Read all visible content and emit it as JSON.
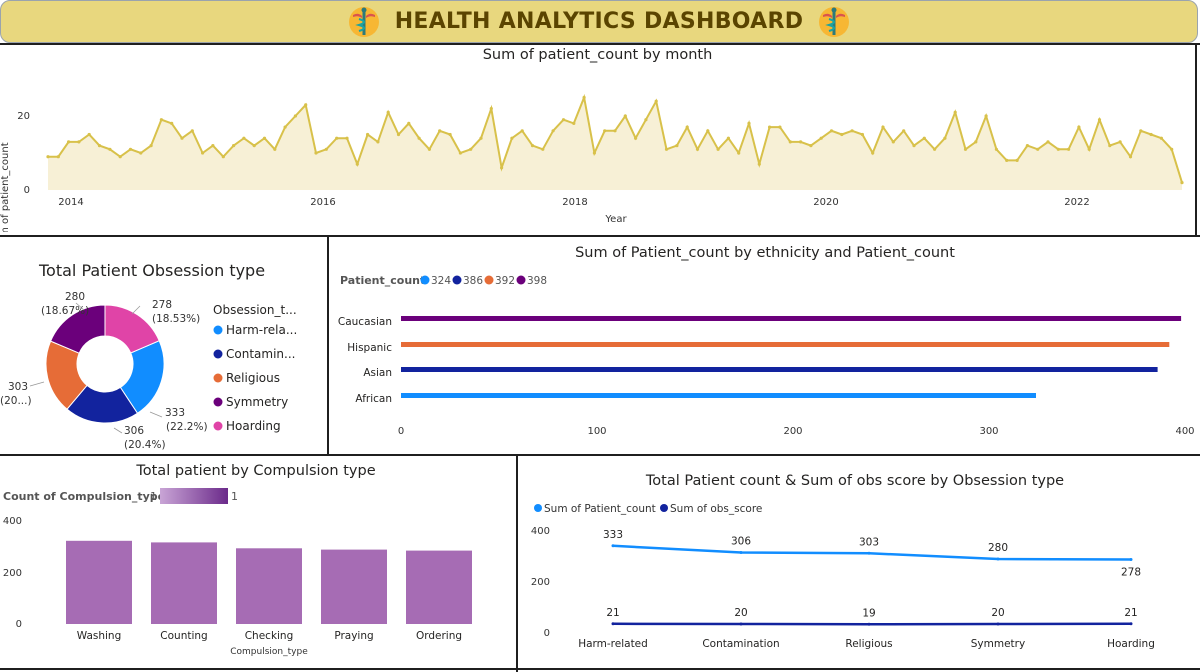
{
  "header": {
    "title": "HEALTH ANALYTICS DASHBOARD",
    "icon": "caduceus-icon"
  },
  "colors": {
    "line": "#d8c14a",
    "area": "#f7f0d6",
    "blue": "#118dff",
    "navy": "#12239e",
    "orange": "#e66c37",
    "purple": "#6b007b",
    "pink": "#e044a7",
    "bar": "#a66cb4"
  },
  "monthly": {
    "title": "Sum of patient_count by month",
    "xlabel": "Year",
    "ylabel": "Sum of patient_count",
    "y_ticks": [
      "0",
      "20"
    ],
    "x_ticks": [
      "2014",
      "2016",
      "2018",
      "2020",
      "2022"
    ]
  },
  "donut": {
    "title": "Total Patient Obsession type",
    "legend_title": "Obsession_t...",
    "legend_items": [
      "Harm-rela...",
      "Contamin...",
      "Religious",
      "Symmetry",
      "Hoarding"
    ],
    "labels": [
      {
        "value": "333",
        "pct": "(22.2%)"
      },
      {
        "value": "306",
        "pct": "(20.4%)"
      },
      {
        "value": "303",
        "pct": "(20...)"
      },
      {
        "value": "280",
        "pct": "(18.67%)"
      },
      {
        "value": "278",
        "pct": "(18.53%)"
      }
    ]
  },
  "ethnicity": {
    "title": "Sum of Patient_count by ethnicity and Patient_count",
    "legend_title": "Patient_count",
    "legend_items": [
      "324",
      "386",
      "392",
      "398"
    ],
    "x_ticks": [
      "0",
      "100",
      "200",
      "300",
      "400"
    ]
  },
  "compulsion": {
    "title": "Total patient by Compulsion type",
    "legend_title": "Count of Compulsion_type",
    "legend_min": "1",
    "legend_max": "1",
    "xlabel": "Compulsion_type",
    "y_ticks": [
      "0",
      "200",
      "400"
    ]
  },
  "combo": {
    "title": "Total Patient count & Sum of obs score by Obsession type",
    "legend_items": [
      "Sum of Patient_count",
      "Sum of obs_score"
    ],
    "y_ticks": [
      "0",
      "200",
      "400"
    ]
  },
  "chart_data": [
    {
      "type": "area",
      "title": "Sum of patient_count by month",
      "xlabel": "Year",
      "ylabel": "Sum of patient_count",
      "ylim": [
        0,
        26
      ],
      "x_start": "2013-11",
      "x_end": "2022-10",
      "values": [
        9,
        9,
        13,
        13,
        15,
        12,
        11,
        9,
        11,
        10,
        12,
        19,
        18,
        14,
        16,
        10,
        12,
        9,
        12,
        14,
        12,
        14,
        11,
        17,
        20,
        23,
        10,
        11,
        14,
        14,
        7,
        15,
        13,
        21,
        15,
        18,
        14,
        11,
        16,
        15,
        10,
        11,
        14,
        22,
        6,
        14,
        16,
        12,
        11,
        16,
        19,
        18,
        25,
        10,
        16,
        16,
        20,
        14,
        19,
        24,
        11,
        12,
        17,
        11,
        16,
        11,
        14,
        10,
        18,
        7,
        17,
        17,
        13,
        13,
        12,
        14,
        16,
        15,
        16,
        15,
        10,
        17,
        13,
        16,
        12,
        14,
        11,
        14,
        21,
        11,
        13,
        20,
        11,
        8,
        8,
        12,
        11,
        13,
        11,
        11,
        17,
        11,
        19,
        12,
        13,
        9,
        16,
        15,
        14,
        11,
        2
      ]
    },
    {
      "type": "pie",
      "title": "Total Patient Obsession type",
      "categories": [
        "Harm-related",
        "Contamination",
        "Religious",
        "Symmetry",
        "Hoarding"
      ],
      "values": [
        333,
        306,
        303,
        280,
        278
      ],
      "percentages": [
        22.2,
        20.4,
        20.2,
        18.67,
        18.53
      ]
    },
    {
      "type": "bar",
      "orientation": "horizontal",
      "title": "Sum of Patient_count by ethnicity and Patient_count",
      "categories": [
        "Caucasian",
        "Hispanic",
        "Asian",
        "African"
      ],
      "values": [
        398,
        392,
        386,
        324
      ],
      "legend": [
        "324",
        "386",
        "392",
        "398"
      ],
      "xlim": [
        0,
        400
      ]
    },
    {
      "type": "bar",
      "title": "Total patient by Compulsion type",
      "categories": [
        "Washing",
        "Counting",
        "Checking",
        "Praying",
        "Ordering"
      ],
      "values": [
        323,
        317,
        294,
        289,
        285
      ],
      "xlabel": "Compulsion_type",
      "ylim": [
        0,
        400
      ]
    },
    {
      "type": "line",
      "title": "Total Patient count & Sum of obs score by Obsession type",
      "categories": [
        "Harm-related",
        "Contamination",
        "Religious",
        "Symmetry",
        "Hoarding"
      ],
      "series": [
        {
          "name": "Sum of Patient_count",
          "values": [
            333,
            306,
            303,
            280,
            278
          ]
        },
        {
          "name": "Sum of obs_score",
          "values": [
            21,
            20,
            19,
            20,
            21
          ]
        }
      ],
      "ylim": [
        0,
        400
      ]
    }
  ]
}
